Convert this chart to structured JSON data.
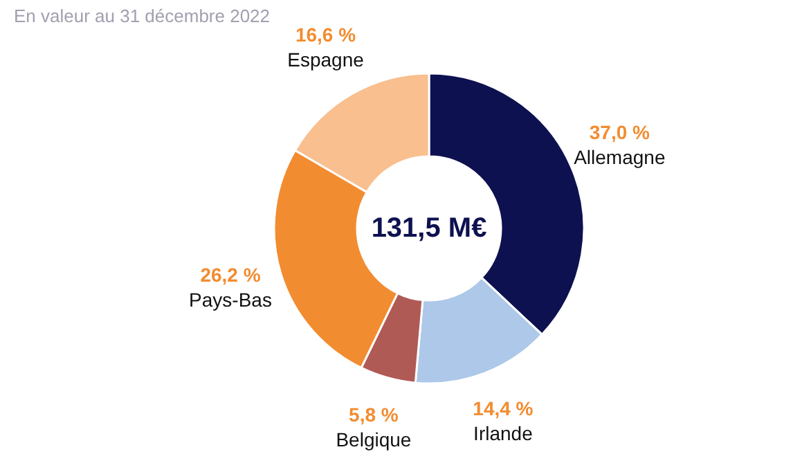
{
  "chart_data": {
    "type": "donut",
    "subtitle": "En valeur au 31 décembre 2022",
    "categories": [
      "Allemagne",
      "Irlande",
      "Belgique",
      "Pays-Bas",
      "Espagne"
    ],
    "values": [
      37.0,
      14.4,
      5.8,
      26.2,
      16.6
    ],
    "value_labels": [
      "37,0 %",
      "14,4 %",
      "5,8 %",
      "26,2 %",
      "16,6 %"
    ],
    "colors": [
      "#0d1150",
      "#adc8e8",
      "#b05a55",
      "#f28c30",
      "#f9bf8f"
    ],
    "annotations": [
      "131,5 M€"
    ]
  }
}
